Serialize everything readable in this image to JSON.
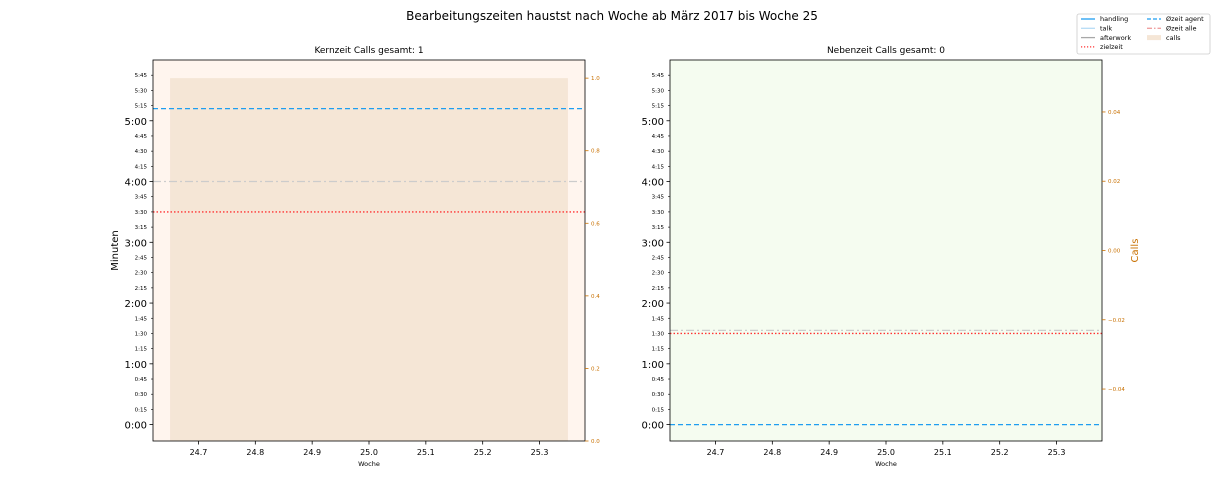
{
  "figure": {
    "title": "Bearbeitungszeiten haustst nach Woche ab März 2017 bis Woche 25"
  },
  "legend": {
    "placement": "top-right",
    "entries": [
      {
        "key": "handling",
        "label": "handling",
        "color": "#1f9ef0",
        "style": "solid"
      },
      {
        "key": "talk",
        "label": "talk",
        "color": "#b7dcf5",
        "style": "solid"
      },
      {
        "key": "afterwork",
        "label": "afterwork",
        "color": "#a8a8a8",
        "style": "solid"
      },
      {
        "key": "zielzeit",
        "label": "zielzeit",
        "color": "#ff3333",
        "style": "dotted"
      },
      {
        "key": "oezeit_agent",
        "label": "Øzeit agent",
        "color": "#1f9ef0",
        "style": "dashed"
      },
      {
        "key": "oezeit_alle",
        "label": "Øzeit alle",
        "color": "#f0a0a0",
        "style": "dashdot"
      },
      {
        "key": "calls",
        "label": "calls",
        "color": "#f5e6d6",
        "style": "patch"
      }
    ]
  },
  "chart_data": [
    {
      "type": "bar",
      "title": "Kernzeit Calls gesamt: 1",
      "xlabel": "Woche",
      "ylabel": "Minuten",
      "y2label": "",
      "background": "#fff5ee",
      "xlim": [
        24.62,
        25.38
      ],
      "x_ticks": [
        "24.7",
        "24.8",
        "24.9",
        "25.0",
        "25.1",
        "25.2",
        "25.3"
      ],
      "ylim_minutes": [
        -0.27,
        6.0
      ],
      "y_major_ticks": [
        "0:00",
        "1:00",
        "2:00",
        "3:00",
        "4:00",
        "5:00"
      ],
      "y_minor_ticks": [
        "0:15",
        "0:30",
        "0:45",
        "1:15",
        "1:30",
        "1:45",
        "2:15",
        "2:30",
        "2:45",
        "3:15",
        "3:30",
        "3:45",
        "4:15",
        "4:30",
        "4:45",
        "5:15",
        "5:30",
        "5:45"
      ],
      "y2lim": [
        0.0,
        1.05
      ],
      "y2_ticks": [
        "0.0",
        "0.2",
        "0.4",
        "0.6",
        "0.8",
        "1.0"
      ],
      "y2_color": "#c87000",
      "calls_bars": [
        {
          "x": 25.0,
          "width": 0.7,
          "calls": 1
        }
      ],
      "hlines": [
        {
          "series": "oezeit_agent",
          "y_minutes": 5.2
        },
        {
          "series": "oezeit_alle_gray",
          "y_minutes": 4.0
        },
        {
          "series": "zielzeit",
          "y_minutes": 3.5
        }
      ],
      "grid": false
    },
    {
      "type": "bar",
      "title": "Nebenzeit Calls gesamt: 0",
      "xlabel": "Woche",
      "ylabel": "",
      "y2label": "Calls",
      "background": "#f5fcf0",
      "xlim": [
        24.62,
        25.38
      ],
      "x_ticks": [
        "24.7",
        "24.8",
        "24.9",
        "25.0",
        "25.1",
        "25.2",
        "25.3"
      ],
      "ylim_minutes": [
        -0.27,
        6.0
      ],
      "y_major_ticks": [
        "0:00",
        "1:00",
        "2:00",
        "3:00",
        "4:00",
        "5:00"
      ],
      "y_minor_ticks": [
        "0:15",
        "0:30",
        "0:45",
        "1:15",
        "1:30",
        "1:45",
        "2:15",
        "2:30",
        "2:45",
        "3:15",
        "3:30",
        "3:45",
        "4:15",
        "4:30",
        "4:45",
        "5:15",
        "5:30",
        "5:45"
      ],
      "y2lim": [
        -0.055,
        0.055
      ],
      "y2_ticks": [
        "−0.04",
        "−0.02",
        "0.00",
        "0.02",
        "0.04"
      ],
      "y2_color": "#c87000",
      "calls_bars": [],
      "hlines": [
        {
          "series": "oezeit_alle_gray",
          "y_minutes": 1.55
        },
        {
          "series": "zielzeit",
          "y_minutes": 1.5
        },
        {
          "series": "oezeit_agent",
          "y_minutes": 0.0
        }
      ],
      "grid": false
    }
  ]
}
